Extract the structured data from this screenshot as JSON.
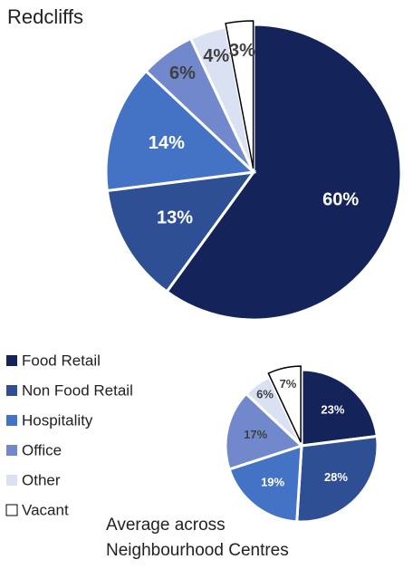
{
  "chart_data": [
    {
      "type": "pie",
      "title": "Redcliffs",
      "categories": [
        "Food Retail",
        "Non Food Retail",
        "Hospitality",
        "Office",
        "Other",
        "Vacant"
      ],
      "values": [
        60,
        13,
        14,
        6,
        4,
        3
      ],
      "value_labels": [
        "60%",
        "13%",
        "14%",
        "6%",
        "4%",
        "3%"
      ],
      "colors": [
        "#14245a",
        "#2f4f95",
        "#4472c4",
        "#7189cc",
        "#d9e1f2",
        "#ffffff"
      ]
    },
    {
      "type": "pie",
      "title": "Average across Neighbourhood Centres",
      "categories": [
        "Food Retail",
        "Non Food Retail",
        "Hospitality",
        "Office",
        "Other",
        "Vacant"
      ],
      "values": [
        23,
        28,
        19,
        17,
        6,
        7
      ],
      "value_labels": [
        "23%",
        "28%",
        "19%",
        "17%",
        "6%",
        "7%"
      ],
      "colors": [
        "#14245a",
        "#2f4f95",
        "#4472c4",
        "#7189cc",
        "#d9e1f2",
        "#ffffff"
      ]
    }
  ]
}
